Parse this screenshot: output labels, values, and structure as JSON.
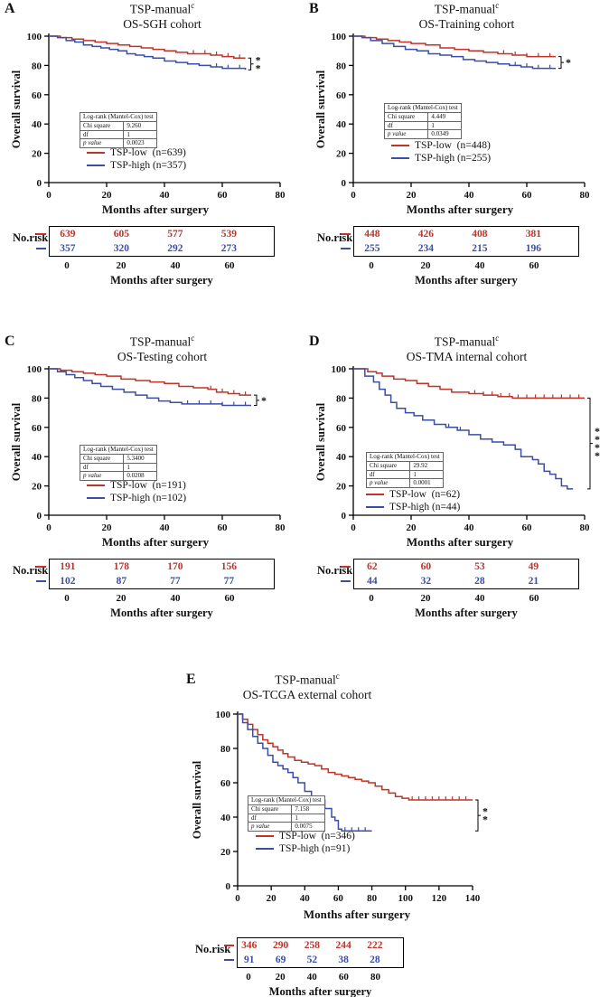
{
  "labels": {
    "norisk": "No.risk",
    "stats_header": "Log-rank (Mantel-Cox)  test",
    "chi": "Chi square",
    "df": "df",
    "p": "p value"
  },
  "common": {
    "title_name": "TSP-manual",
    "title_sup": "c",
    "xlabel": "Months after surgery",
    "ylabel": "Overall survival"
  },
  "panels": [
    {
      "label": "A",
      "subtitle": "OS-SGH cohort"
    },
    {
      "label": "B",
      "subtitle": "OS-Training cohort"
    },
    {
      "label": "C",
      "subtitle": "OS-Testing cohort"
    },
    {
      "label": "D",
      "subtitle": "OS-TMA internal cohort"
    },
    {
      "label": "E",
      "subtitle": "OS-TCGA external cohort"
    }
  ],
  "chart_data": [
    {
      "type": "line",
      "subtype": "kaplan-meier",
      "title": "TSP-manual^c OS-SGH cohort",
      "xlabel": "Months after surgery",
      "ylabel": "Overall survival",
      "xlim": [
        0,
        80
      ],
      "ylim": [
        0,
        100
      ],
      "xticks": [
        0,
        20,
        40,
        60,
        80
      ],
      "yticks": [
        0,
        20,
        40,
        60,
        80,
        100
      ],
      "grid": false,
      "legend_position": "lower left",
      "significance": "**",
      "stats": {
        "test": "Log-rank (Mantel-Cox) test",
        "chi_square": "9.260",
        "df": "1",
        "p_value": "0.0023"
      },
      "series": [
        {
          "name": "TSP-low  (n=639)",
          "color": "#bf3329",
          "x": [
            0,
            4,
            8,
            12,
            16,
            20,
            24,
            28,
            32,
            36,
            40,
            44,
            48,
            52,
            56,
            60,
            64,
            68
          ],
          "y": [
            100,
            99,
            98,
            97,
            96,
            95,
            94,
            93,
            92,
            91,
            90,
            89,
            88,
            88,
            87,
            86,
            85,
            85
          ],
          "censor_x": [
            50,
            54,
            58,
            62,
            66
          ]
        },
        {
          "name": "TSP-high (n=357)",
          "color": "#3a4da8",
          "x": [
            0,
            3,
            6,
            9,
            12,
            15,
            18,
            21,
            24,
            27,
            30,
            33,
            36,
            40,
            44,
            48,
            52,
            56,
            60,
            64,
            68
          ],
          "y": [
            100,
            99,
            97,
            96,
            94,
            93,
            92,
            91,
            90,
            88,
            87,
            86,
            85,
            83,
            82,
            81,
            80,
            79,
            78,
            78,
            77
          ],
          "censor_x": [
            58,
            62,
            66
          ]
        }
      ],
      "number_at_risk": {
        "times": [
          "0",
          "20",
          "40",
          "60"
        ],
        "low": [
          "639",
          "605",
          "577",
          "539"
        ],
        "high": [
          "357",
          "320",
          "292",
          "273"
        ]
      }
    },
    {
      "type": "line",
      "subtype": "kaplan-meier",
      "title": "TSP-manual^c OS-Training cohort",
      "xlabel": "Months after surgery",
      "ylabel": "Overall survival",
      "xlim": [
        0,
        80
      ],
      "ylim": [
        0,
        100
      ],
      "xticks": [
        0,
        20,
        40,
        60,
        80
      ],
      "yticks": [
        0,
        20,
        40,
        60,
        80,
        100
      ],
      "grid": false,
      "legend_position": "lower left",
      "significance": "*",
      "stats": {
        "test": "Log-rank (Mantel-Cox) test",
        "chi_square": "4.449",
        "df": "1",
        "p_value": "0.0349"
      },
      "series": [
        {
          "name": "TSP-low  (n=448)",
          "color": "#bf3329",
          "x": [
            0,
            4,
            8,
            12,
            16,
            20,
            25,
            30,
            35,
            40,
            45,
            50,
            55,
            60,
            65,
            70
          ],
          "y": [
            100,
            99,
            98,
            97,
            96,
            95,
            94,
            92,
            91,
            90,
            89,
            88,
            87,
            86,
            86,
            86
          ],
          "censor_x": [
            52,
            56,
            60,
            64,
            68
          ]
        },
        {
          "name": "TSP-high (n=255)",
          "color": "#3a4da8",
          "x": [
            0,
            3,
            6,
            10,
            14,
            18,
            22,
            26,
            30,
            34,
            38,
            42,
            46,
            50,
            54,
            58,
            62,
            66,
            70
          ],
          "y": [
            100,
            99,
            97,
            95,
            93,
            91,
            90,
            88,
            87,
            86,
            84,
            83,
            82,
            81,
            80,
            79,
            78,
            78,
            78
          ],
          "censor_x": [
            56,
            60,
            64,
            68
          ]
        }
      ],
      "number_at_risk": {
        "times": [
          "0",
          "20",
          "40",
          "60"
        ],
        "low": [
          "448",
          "426",
          "408",
          "381"
        ],
        "high": [
          "255",
          "234",
          "215",
          "196"
        ]
      }
    },
    {
      "type": "line",
      "subtype": "kaplan-meier",
      "title": "TSP-manual^c OS-Testing cohort",
      "xlabel": "Months after surgery",
      "ylabel": "Overall survival",
      "xlim": [
        0,
        80
      ],
      "ylim": [
        0,
        100
      ],
      "xticks": [
        0,
        20,
        40,
        60,
        80
      ],
      "yticks": [
        0,
        20,
        40,
        60,
        80,
        100
      ],
      "grid": false,
      "legend_position": "lower left",
      "significance": "*",
      "stats": {
        "test": "Log-rank (Mantel-Cox) test",
        "chi_square": "5.3400",
        "df": "1",
        "p_value": "0.0208"
      },
      "series": [
        {
          "name": "TSP-low  (n=191)",
          "color": "#bf3329",
          "x": [
            0,
            4,
            8,
            12,
            16,
            20,
            25,
            30,
            35,
            40,
            45,
            50,
            55,
            58,
            62,
            66,
            70
          ],
          "y": [
            100,
            99,
            98,
            97,
            96,
            95,
            93,
            92,
            91,
            90,
            88,
            87,
            86,
            84,
            83,
            82,
            82
          ],
          "censor_x": [
            56,
            60,
            64,
            68
          ]
        },
        {
          "name": "TSP-high (n=102)",
          "color": "#3a4da8",
          "x": [
            0,
            3,
            6,
            9,
            12,
            15,
            18,
            22,
            26,
            30,
            34,
            38,
            42,
            46,
            50,
            60,
            70
          ],
          "y": [
            100,
            98,
            96,
            94,
            92,
            90,
            88,
            86,
            84,
            82,
            80,
            78,
            77,
            76,
            76,
            75,
            75
          ],
          "censor_x": [
            48,
            52,
            56,
            60,
            64,
            68
          ]
        }
      ],
      "number_at_risk": {
        "times": [
          "0",
          "20",
          "40",
          "60"
        ],
        "low": [
          "191",
          "178",
          "170",
          "156"
        ],
        "high": [
          "102",
          "87",
          "77",
          "77"
        ]
      }
    },
    {
      "type": "line",
      "subtype": "kaplan-meier",
      "title": "TSP-manual^c OS-TMA internal cohort",
      "xlabel": "Months after surgery",
      "ylabel": "Overall survival",
      "xlim": [
        0,
        80
      ],
      "ylim": [
        0,
        100
      ],
      "xticks": [
        0,
        20,
        40,
        60,
        80
      ],
      "yticks": [
        0,
        20,
        40,
        60,
        80,
        100
      ],
      "grid": false,
      "legend_position": "lower left",
      "significance": "****",
      "stats": {
        "test": "Log-rank (Mantel-Cox) test",
        "chi_square": "29.92",
        "df": "1",
        "p_value": "0.0001"
      },
      "series": [
        {
          "name": "TSP-low  (n=62)",
          "color": "#bf3329",
          "x": [
            0,
            5,
            8,
            10,
            14,
            18,
            22,
            26,
            30,
            34,
            40,
            45,
            50,
            55,
            60,
            80
          ],
          "y": [
            100,
            98,
            97,
            95,
            93,
            92,
            90,
            88,
            86,
            84,
            83,
            82,
            81,
            80,
            80,
            80
          ],
          "censor_x": [
            42,
            45,
            48,
            51,
            54,
            57,
            60,
            63,
            66,
            69,
            72,
            75,
            78
          ]
        },
        {
          "name": "TSP-high (n=44)",
          "color": "#3a4da8",
          "x": [
            0,
            4,
            7,
            9,
            11,
            13,
            15,
            18,
            21,
            24,
            28,
            32,
            36,
            40,
            44,
            48,
            52,
            56,
            58,
            62,
            64,
            66,
            68,
            70,
            72,
            74,
            76
          ],
          "y": [
            100,
            95,
            91,
            86,
            82,
            77,
            73,
            70,
            68,
            65,
            62,
            60,
            58,
            55,
            52,
            50,
            48,
            45,
            40,
            38,
            35,
            30,
            28,
            25,
            20,
            18,
            18
          ],
          "censor_x": [
            33,
            37
          ]
        }
      ],
      "number_at_risk": {
        "times": [
          "0",
          "20",
          "40",
          "60"
        ],
        "low": [
          "62",
          "60",
          "53",
          "49"
        ],
        "high": [
          "44",
          "32",
          "28",
          "21"
        ]
      }
    },
    {
      "type": "line",
      "subtype": "kaplan-meier",
      "title": "TSP-manual^c OS-TCGA external cohort",
      "xlabel": "Months after surgery",
      "ylabel": "Overall survival",
      "xlim": [
        0,
        140
      ],
      "ylim": [
        0,
        100
      ],
      "xticks": [
        0,
        20,
        40,
        60,
        80,
        100,
        120,
        140
      ],
      "yticks": [
        0,
        20,
        40,
        60,
        80,
        100
      ],
      "grid": false,
      "legend_position": "lower left",
      "significance": "**",
      "stats": {
        "test": "Log-rank (Mantel-Cox) test",
        "chi_square": "7.158",
        "df": "1",
        "p_value": "0.0075"
      },
      "series": [
        {
          "name": "TSP-low  (n=346)",
          "color": "#bf3329",
          "x": [
            0,
            3,
            6,
            9,
            12,
            15,
            18,
            21,
            24,
            27,
            30,
            34,
            38,
            42,
            46,
            50,
            54,
            58,
            62,
            66,
            70,
            74,
            78,
            82,
            86,
            90,
            94,
            98,
            102,
            110,
            140
          ],
          "y": [
            100,
            97,
            94,
            91,
            88,
            85,
            83,
            81,
            79,
            77,
            75,
            73,
            72,
            71,
            70,
            68,
            66,
            65,
            64,
            63,
            62,
            61,
            60,
            58,
            56,
            54,
            52,
            51,
            50,
            50,
            50
          ],
          "censor_x": [
            104,
            108,
            112,
            116,
            120,
            124,
            128,
            132,
            136
          ]
        },
        {
          "name": "TSP-high (n=91)",
          "color": "#3a4da8",
          "x": [
            0,
            3,
            6,
            9,
            12,
            15,
            18,
            21,
            24,
            27,
            30,
            33,
            36,
            40,
            44,
            48,
            52,
            56,
            58,
            60,
            62,
            80
          ],
          "y": [
            100,
            95,
            91,
            87,
            83,
            80,
            76,
            72,
            70,
            68,
            66,
            63,
            60,
            55,
            52,
            50,
            45,
            40,
            38,
            33,
            32,
            32
          ],
          "censor_x": [
            64,
            68,
            72,
            76
          ]
        }
      ],
      "number_at_risk": {
        "times": [
          "0",
          "20",
          "40",
          "60",
          "80"
        ],
        "low": [
          "346",
          "290",
          "258",
          "244",
          "222"
        ],
        "high": [
          "91",
          "69",
          "52",
          "38",
          "28"
        ]
      }
    }
  ]
}
